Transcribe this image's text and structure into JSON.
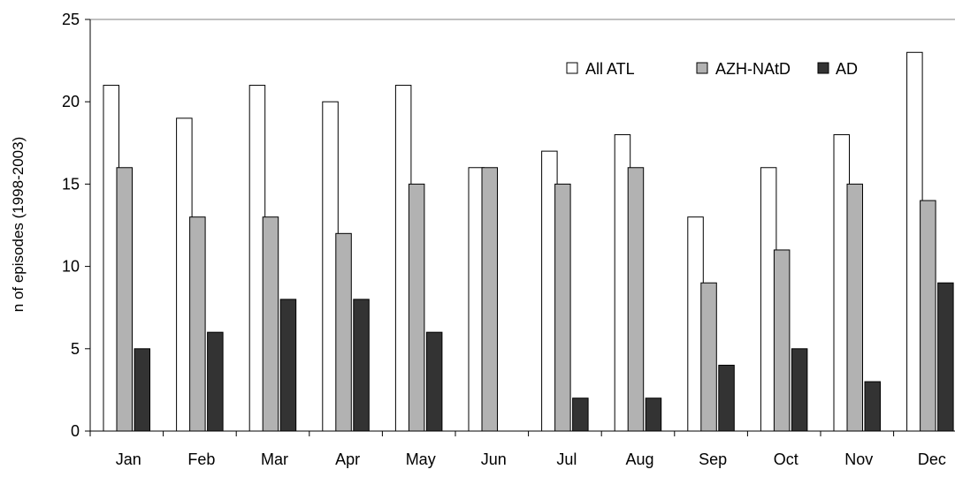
{
  "chart_data": {
    "type": "bar",
    "ylabel": "n of episodes (1998-2003)",
    "xlabel": "",
    "ylim": [
      0,
      25
    ],
    "yticks": [
      0,
      5,
      10,
      15,
      20,
      25
    ],
    "grid": false,
    "legend_position": "top-right",
    "categories": [
      "Jan",
      "Feb",
      "Mar",
      "Apr",
      "May",
      "Jun",
      "Jul",
      "Aug",
      "Sep",
      "Oct",
      "Nov",
      "Dec"
    ],
    "series": [
      {
        "name": "All ATL",
        "color": "#ffffff",
        "values": [
          21,
          19,
          21,
          20,
          21,
          16,
          17,
          18,
          13,
          16,
          18,
          23
        ]
      },
      {
        "name": "AZH-NAtD",
        "color": "#b2b2b2",
        "values": [
          16,
          13,
          13,
          12,
          15,
          16,
          15,
          16,
          9,
          11,
          15,
          14
        ]
      },
      {
        "name": "AD",
        "color": "#333333",
        "values": [
          5,
          6,
          8,
          8,
          6,
          0,
          2,
          2,
          4,
          5,
          3,
          9
        ]
      }
    ]
  }
}
